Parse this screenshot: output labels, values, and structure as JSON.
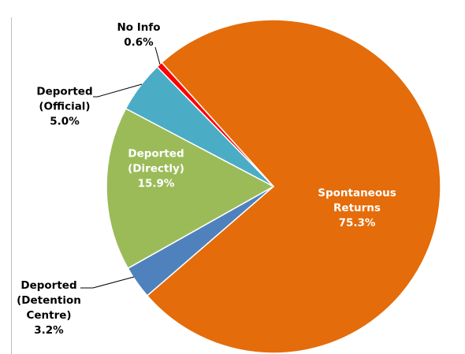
{
  "chart_data": {
    "type": "pie",
    "categories": [
      "Spontaneous\nReturns",
      "Deported\n(Detention\nCentre)",
      "Deported\n(Directly)",
      "Deported\n(Official)",
      "No Info"
    ],
    "values": [
      75.3,
      3.2,
      15.9,
      5.0,
      0.6
    ],
    "value_labels": [
      "75.3%",
      "3.2%",
      "15.9%",
      "5.0%",
      "0.6%"
    ],
    "colors": [
      "#e46c0a",
      "#4f81bd",
      "#9bbb59",
      "#4bacc6",
      "#ff0000"
    ]
  }
}
